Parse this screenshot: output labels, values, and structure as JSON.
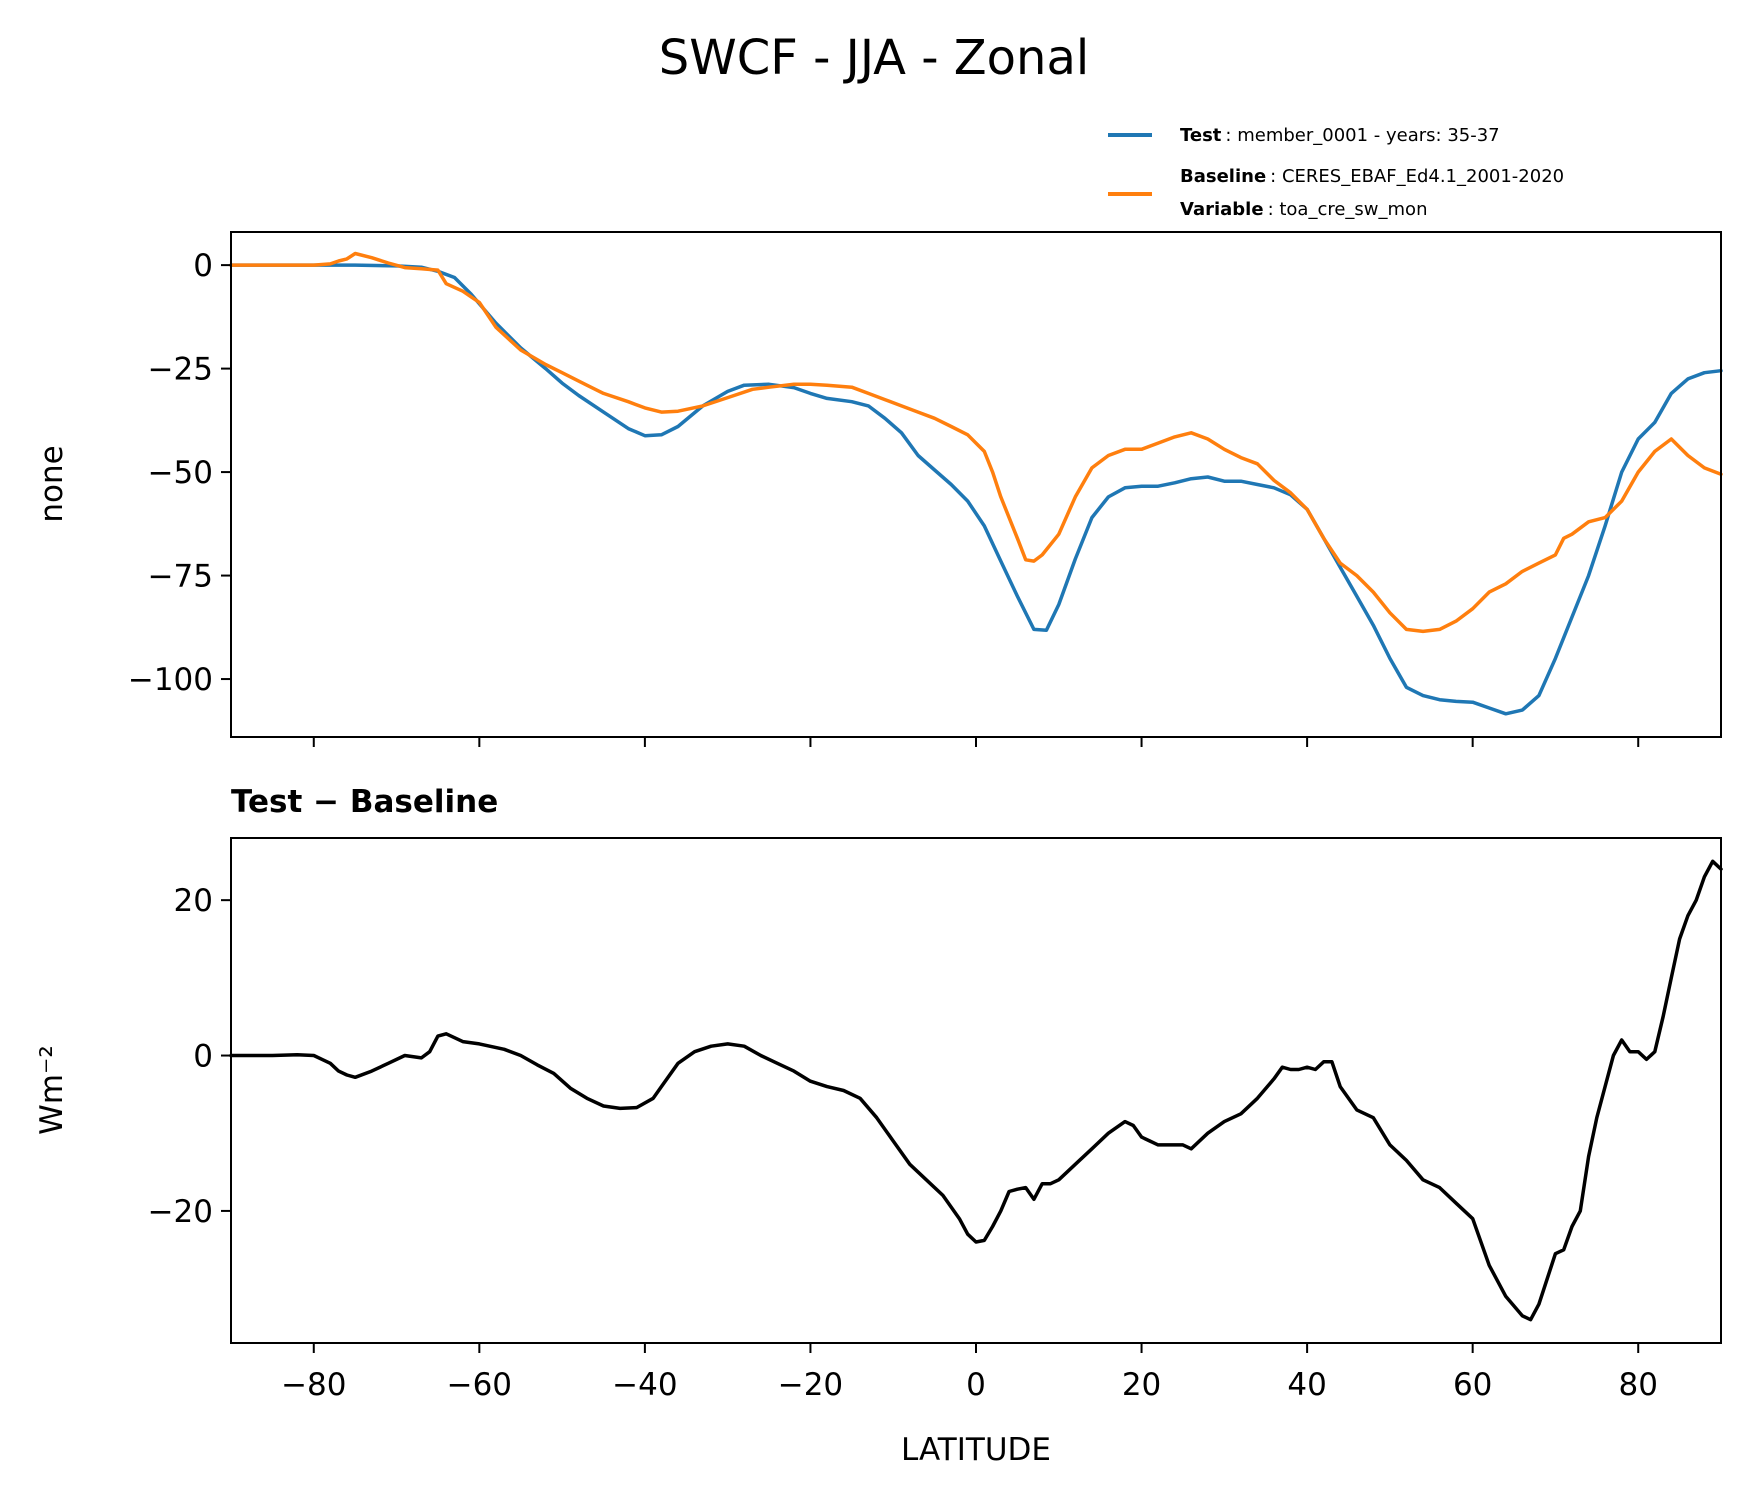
{
  "figure": {
    "title": "SWCF - JJA - Zonal",
    "xlabel": "LATITUDE"
  },
  "legend": {
    "test_label": "Test",
    "test_text": ": member_0001 - years: 35-37",
    "baseline_label": "Baseline",
    "baseline_text": ": CERES_EBAF_Ed4.1_2001-2020",
    "variable_label": "Variable",
    "variable_text": ": toa_cre_sw_mon"
  },
  "chart_data": [
    {
      "type": "line",
      "title": "SWCF - JJA - Zonal",
      "xlabel": "",
      "ylabel": "none",
      "xlim": [
        -90,
        90
      ],
      "ylim": [
        -114,
        8
      ],
      "yticks": [
        0,
        -25,
        -50,
        -75,
        -100
      ],
      "ytick_labels": [
        "0",
        "−25",
        "−50",
        "−75",
        "−100"
      ],
      "xticks": [
        -80,
        -60,
        -40,
        -20,
        0,
        20,
        40,
        60,
        80
      ],
      "legend_position": "above-right",
      "series": [
        {
          "name": "Test",
          "color": "#1f77b4",
          "x": [
            -90,
            -85,
            -80,
            -75,
            -70,
            -67,
            -65,
            -63,
            -61,
            -58,
            -55,
            -52,
            -50,
            -48,
            -45,
            -42,
            -40,
            -38,
            -36,
            -33,
            -30,
            -28,
            -25,
            -22,
            -20,
            -18,
            -15,
            -13,
            -11,
            -9,
            -7,
            -5,
            -3,
            -1,
            1,
            3,
            5,
            7,
            8.5,
            10,
            12,
            14,
            16,
            18,
            20,
            22,
            24,
            26,
            28,
            30,
            32,
            34,
            36,
            38,
            40,
            42,
            44,
            46,
            48,
            50,
            52,
            54,
            56,
            58,
            60,
            62,
            64,
            66,
            68,
            70,
            72,
            74,
            76,
            78,
            80,
            82,
            84,
            86,
            88,
            90
          ],
          "values": [
            0,
            0,
            0,
            0,
            -0.2,
            -0.5,
            -1.5,
            -3,
            -7,
            -14,
            -20,
            -25,
            -28.5,
            -31.5,
            -35.5,
            -39.5,
            -41.2,
            -41,
            -39,
            -34,
            -30.5,
            -29,
            -28.8,
            -29.6,
            -31,
            -32.2,
            -33,
            -34,
            -37,
            -40.5,
            -46,
            -49.5,
            -53,
            -57,
            -63,
            -71.5,
            -80,
            -88,
            -88.2,
            -82,
            -71,
            -61,
            -56,
            -53.8,
            -53.4,
            -53.4,
            -52.6,
            -51.6,
            -51.2,
            -52.2,
            -52.2,
            -53,
            -53.8,
            -55.5,
            -59,
            -66,
            -73,
            -80,
            -87,
            -95,
            -102,
            -104,
            -105,
            -105.4,
            -105.6,
            -107,
            -108.4,
            -107.5,
            -104,
            -95,
            -85,
            -75,
            -63,
            -50,
            -42,
            -38,
            -31,
            -27.5,
            -26,
            -25.5
          ]
        },
        {
          "name": "Baseline",
          "color": "#ff7f0e",
          "x": [
            -90,
            -85,
            -80,
            -78,
            -77,
            -76,
            -75,
            -73,
            -71,
            -69,
            -67,
            -65,
            -64,
            -62,
            -60,
            -58,
            -55,
            -52,
            -50,
            -47,
            -45,
            -42,
            -40,
            -38,
            -36,
            -33,
            -30,
            -27,
            -25,
            -22,
            -20,
            -18,
            -15,
            -13,
            -11,
            -9,
            -7,
            -5,
            -3,
            -1,
            0,
            1,
            2,
            3,
            5,
            6,
            7,
            8,
            10,
            12,
            14,
            16,
            18,
            20,
            22,
            24,
            26,
            28,
            30,
            32,
            34,
            36,
            38,
            40,
            42,
            44,
            46,
            48,
            50,
            52,
            54,
            56,
            58,
            60,
            62,
            64,
            66,
            68,
            70,
            71,
            72,
            74,
            76,
            78,
            80,
            82,
            84,
            86,
            88,
            90
          ],
          "values": [
            0,
            0,
            0,
            0.3,
            1,
            1.5,
            2.8,
            1.8,
            0.5,
            -0.6,
            -0.9,
            -1.2,
            -4.5,
            -6.3,
            -9,
            -15,
            -20.5,
            -24,
            -26,
            -29,
            -31,
            -33,
            -34.5,
            -35.5,
            -35.3,
            -34,
            -32,
            -30,
            -29.5,
            -28.8,
            -28.8,
            -29,
            -29.5,
            -31,
            -32.5,
            -34,
            -35.5,
            -37,
            -39,
            -41,
            -43,
            -45,
            -50,
            -56,
            -66,
            -71.2,
            -71.5,
            -70,
            -65,
            -56,
            -49,
            -46,
            -44.5,
            -44.5,
            -43,
            -41.5,
            -40.5,
            -42,
            -44.5,
            -46.5,
            -48,
            -52,
            -55,
            -59,
            -66,
            -72,
            -75,
            -79,
            -84,
            -88,
            -88.5,
            -88,
            -86,
            -83,
            -79,
            -77,
            -74,
            -72,
            -70,
            -66,
            -65,
            -62,
            -61,
            -57,
            -50,
            -45,
            -42,
            -46,
            -49,
            -50.5
          ]
        }
      ]
    },
    {
      "type": "line",
      "title": "Test − Baseline",
      "xlabel": "LATITUDE",
      "ylabel": "Wm⁻²",
      "xlim": [
        -90,
        90
      ],
      "ylim": [
        -37,
        28
      ],
      "yticks": [
        20,
        0,
        -20
      ],
      "ytick_labels": [
        "20",
        "0",
        "−20"
      ],
      "xticks": [
        -80,
        -60,
        -40,
        -20,
        0,
        20,
        40,
        60,
        80
      ],
      "xtick_labels": [
        "−80",
        "−60",
        "−40",
        "−20",
        "0",
        "20",
        "40",
        "60",
        "80"
      ],
      "series": [
        {
          "name": "Test − Baseline",
          "color": "#000000",
          "x": [
            -90,
            -85,
            -82,
            -80,
            -79,
            -78,
            -77,
            -76,
            -75,
            -73,
            -71,
            -69,
            -67,
            -66,
            -65,
            -64,
            -62,
            -60,
            -57,
            -55,
            -53,
            -51,
            -49,
            -47,
            -45,
            -43,
            -41,
            -39,
            -38,
            -36,
            -34,
            -32,
            -30,
            -28,
            -26,
            -24,
            -22,
            -20,
            -18,
            -16,
            -14,
            -12,
            -10,
            -8,
            -6,
            -4,
            -2,
            -1,
            0,
            1,
            2,
            3,
            4,
            5,
            6,
            7,
            8,
            9,
            10,
            12,
            14,
            16,
            18,
            19,
            20,
            21,
            22,
            23,
            25,
            26,
            28,
            30,
            32,
            34,
            36,
            37,
            38,
            39,
            40,
            41,
            42,
            43,
            44,
            46,
            48,
            50,
            52,
            54,
            56,
            58,
            60,
            62,
            64,
            66,
            67,
            68,
            70,
            71,
            72,
            73,
            74,
            75,
            76,
            77,
            78,
            79,
            80,
            81,
            82,
            83,
            84,
            85,
            86,
            87,
            88,
            89,
            90
          ],
          "values": [
            0,
            0,
            0.1,
            0,
            -0.5,
            -1,
            -2,
            -2.5,
            -2.8,
            -2,
            -1,
            0,
            -0.3,
            0.5,
            2.5,
            2.8,
            1.8,
            1.5,
            0.8,
            0,
            -1.2,
            -2.3,
            -4.2,
            -5.5,
            -6.5,
            -6.8,
            -6.7,
            -5.5,
            -4,
            -1,
            0.5,
            1.2,
            1.5,
            1.2,
            0,
            -1,
            -2,
            -3.3,
            -4,
            -4.5,
            -5.5,
            -8,
            -11,
            -14,
            -16,
            -18,
            -21,
            -23,
            -24,
            -23.8,
            -22,
            -20,
            -17.5,
            -17.2,
            -17,
            -18.5,
            -16.5,
            -16.5,
            -16,
            -14,
            -12,
            -10,
            -8.5,
            -9,
            -10.5,
            -11,
            -11.5,
            -11.5,
            -11.5,
            -12,
            -10,
            -8.5,
            -7.5,
            -5.5,
            -3,
            -1.5,
            -1.8,
            -1.8,
            -1.5,
            -1.8,
            -0.8,
            -0.8,
            -4,
            -7,
            -8,
            -11.5,
            -13.5,
            -16,
            -17,
            -19,
            -21,
            -27,
            -31,
            -33.5,
            -34,
            -32,
            -25.5,
            -25,
            -22,
            -20,
            -13,
            -8,
            -4,
            0,
            2,
            0.5,
            0.5,
            -0.5,
            0.5,
            5,
            10,
            15,
            18,
            20,
            23,
            25,
            24
          ]
        }
      ]
    }
  ]
}
